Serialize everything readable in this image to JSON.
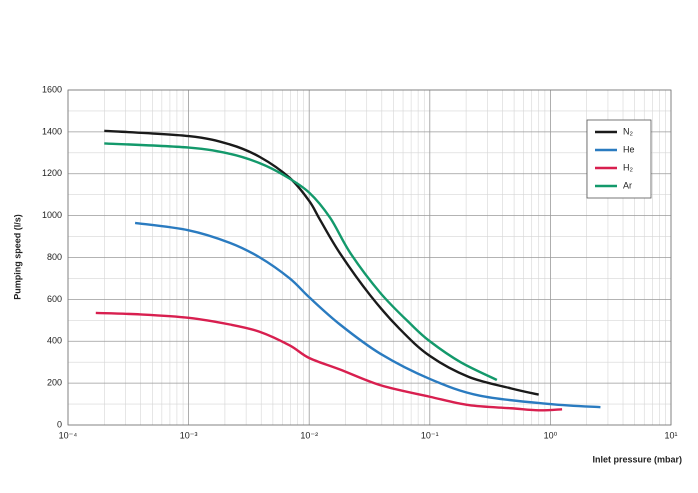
{
  "chart_data": {
    "type": "line",
    "y_label": "Pumping speed (l/s)",
    "x_label": "Inlet pressure (mbar)",
    "log_x": true,
    "grid": true,
    "minor_grid": true,
    "legend": "upper right",
    "xlim": [
      0.0001,
      10
    ],
    "xticks": [
      {
        "value": 0.0001,
        "label": "10⁻⁴"
      },
      {
        "value": 0.001,
        "label": "10⁻³"
      },
      {
        "value": 0.01,
        "label": "10⁻²"
      },
      {
        "value": 0.1,
        "label": "10⁻¹"
      },
      {
        "value": 1,
        "label": "10⁰"
      },
      {
        "value": 10,
        "label": "10¹"
      }
    ],
    "ylim": [
      0,
      1600
    ],
    "yticks": [
      0,
      200,
      400,
      600,
      800,
      1000,
      1200,
      1400,
      1600
    ],
    "series": [
      {
        "name": "N₂",
        "color": "#1a1a1a",
        "x": [
          0.0002,
          0.001,
          0.0022,
          0.0039,
          0.0069,
          0.01,
          0.0123,
          0.018,
          0.032,
          0.056,
          0.1,
          0.21,
          0.47,
          0.8
        ],
        "values": [
          1405,
          1380,
          1340,
          1280,
          1180,
          1070,
          980,
          820,
          620,
          460,
          330,
          230,
          175,
          145
        ]
      },
      {
        "name": "He",
        "color": "#2a7bc0",
        "x": [
          0.00036,
          0.001,
          0.0022,
          0.0039,
          0.0069,
          0.01,
          0.018,
          0.039,
          0.1,
          0.26,
          1,
          2.6
        ],
        "values": [
          965,
          930,
          870,
          800,
          700,
          610,
          480,
          340,
          220,
          140,
          100,
          85
        ]
      },
      {
        "name": "H₂",
        "color": "#d81f4f",
        "x": [
          0.00017,
          0.0004,
          0.001,
          0.0022,
          0.0039,
          0.0069,
          0.01,
          0.018,
          0.039,
          0.1,
          0.21,
          0.47,
          0.8,
          1.25
        ],
        "values": [
          535,
          528,
          512,
          480,
          445,
          380,
          320,
          265,
          190,
          135,
          95,
          80,
          70,
          75
        ]
      },
      {
        "name": "Ar",
        "color": "#13996b",
        "x": [
          0.0002,
          0.001,
          0.0022,
          0.0039,
          0.0063,
          0.01,
          0.0149,
          0.022,
          0.039,
          0.07,
          0.1,
          0.18,
          0.36
        ],
        "values": [
          1345,
          1325,
          1295,
          1250,
          1190,
          1110,
          990,
          820,
          630,
          480,
          400,
          300,
          215
        ]
      }
    ]
  }
}
